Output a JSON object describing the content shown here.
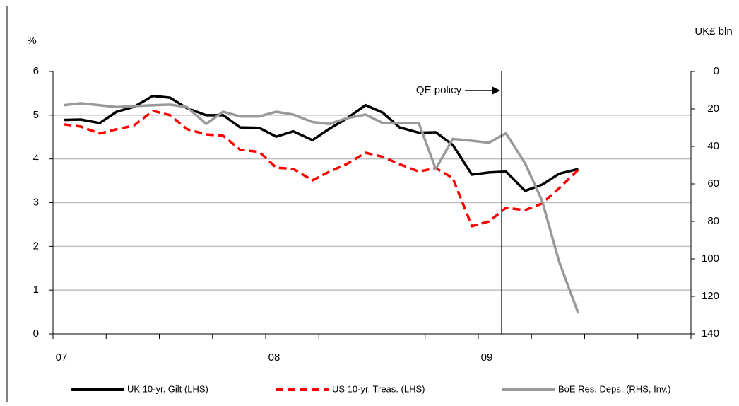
{
  "chart_data": {
    "type": "line",
    "y_label": "%",
    "y2_label": "UK£ bln",
    "xlim": [
      2007,
      2010
    ],
    "xticks": [
      {
        "value": 2007,
        "label": "07"
      },
      {
        "value": 2007.25,
        "label": null
      },
      {
        "value": 2007.5,
        "label": null
      },
      {
        "value": 2007.75,
        "label": null
      },
      {
        "value": 2008,
        "label": "08"
      },
      {
        "value": 2008.25,
        "label": null
      },
      {
        "value": 2008.5,
        "label": null
      },
      {
        "value": 2008.75,
        "label": null
      },
      {
        "value": 2009,
        "label": "09"
      },
      {
        "value": 2009.25,
        "label": null
      },
      {
        "value": 2009.5,
        "label": null
      },
      {
        "value": 2009.75,
        "label": null
      },
      {
        "value": 2010,
        "label": null
      }
    ],
    "ylim": [
      0,
      6
    ],
    "yticks": [
      0,
      1,
      2,
      3,
      4,
      5,
      6
    ],
    "y2lim": [
      140,
      0
    ],
    "y2ticks": [
      0,
      20,
      40,
      60,
      80,
      100,
      120,
      140
    ],
    "y2_inverted": true,
    "grid": true,
    "legend": "bottom",
    "x": [
      2007.05,
      2007.13,
      2007.22,
      2007.3,
      2007.38,
      2007.47,
      2007.55,
      2007.63,
      2007.72,
      2007.8,
      2007.88,
      2007.97,
      2008.05,
      2008.13,
      2008.22,
      2008.3,
      2008.38,
      2008.47,
      2008.55,
      2008.63,
      2008.72,
      2008.8,
      2008.88,
      2008.97,
      2009.05,
      2009.13,
      2009.22,
      2009.3,
      2009.38,
      2009.47
    ],
    "series": [
      {
        "name": "UK 10-yr. Gilt (LHS)",
        "color": "#000000",
        "dash": "solid",
        "values": [
          4.89,
          4.9,
          4.82,
          5.08,
          5.19,
          5.44,
          5.4,
          5.16,
          5.0,
          5.0,
          4.72,
          4.71,
          4.51,
          4.63,
          4.43,
          4.69,
          4.92,
          5.23,
          5.06,
          4.72,
          4.6,
          4.61,
          4.32,
          3.64,
          3.69,
          3.71,
          3.27,
          3.41,
          3.66,
          3.77
        ]
      },
      {
        "name": "US 10-yr. Treas. (LHS)",
        "color": "#ff0000",
        "dash": "dashed",
        "values": [
          4.79,
          4.74,
          4.58,
          4.68,
          4.76,
          5.1,
          5.0,
          4.68,
          4.56,
          4.53,
          4.21,
          4.16,
          3.8,
          3.77,
          3.51,
          3.71,
          3.88,
          4.14,
          4.05,
          3.88,
          3.71,
          3.79,
          3.56,
          2.46,
          2.57,
          2.88,
          2.83,
          2.98,
          3.33,
          3.75
        ]
      },
      {
        "name": "BoE Res. Deps. (RHS, Inv.)",
        "color": "#999999",
        "dash": "solid",
        "axis": "y2",
        "values": [
          18,
          17,
          18,
          19,
          18.5,
          18,
          17.7,
          19,
          28,
          21.5,
          24,
          24,
          21.5,
          23,
          27,
          28,
          25,
          23,
          27.5,
          27.5,
          27.5,
          52,
          36,
          37,
          38,
          33,
          49,
          69,
          101.5,
          129
        ]
      }
    ],
    "annotations": [
      {
        "text": "QE policy",
        "x": 2009.11
      }
    ]
  }
}
